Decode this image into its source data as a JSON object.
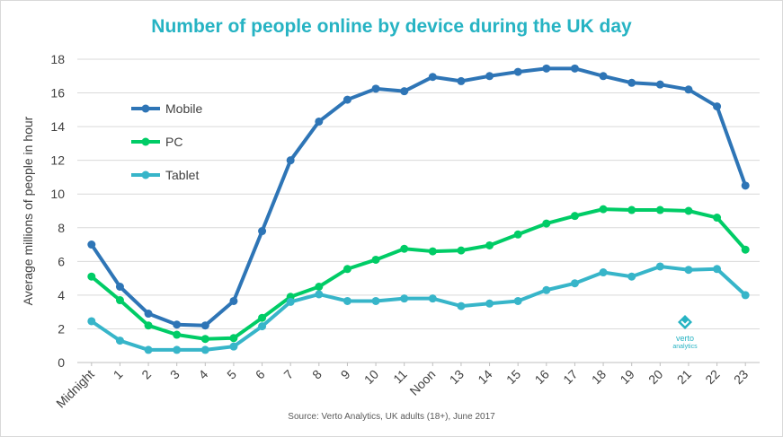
{
  "chart_data": {
    "type": "line",
    "title": "Number of people online by device during the UK day",
    "ylabel": "Average millions of people in hour",
    "xlabel": "",
    "ylim": [
      0,
      18
    ],
    "yticks": [
      0,
      2,
      4,
      6,
      8,
      10,
      12,
      14,
      16,
      18
    ],
    "grid": true,
    "legend_position": "top-left",
    "categories": [
      "Midnight",
      "1",
      "2",
      "3",
      "4",
      "5",
      "6",
      "7",
      "8",
      "9",
      "10",
      "11",
      "Noon",
      "13",
      "14",
      "15",
      "16",
      "17",
      "18",
      "19",
      "20",
      "21",
      "22",
      "23"
    ],
    "series": [
      {
        "name": "Mobile",
        "color": "#2e75b6",
        "values": [
          7.0,
          4.5,
          2.9,
          2.25,
          2.2,
          3.65,
          7.8,
          12.0,
          14.3,
          15.6,
          16.25,
          16.1,
          16.95,
          16.7,
          17.0,
          17.25,
          17.45,
          17.45,
          17.0,
          16.6,
          16.5,
          16.2,
          15.2,
          10.5
        ]
      },
      {
        "name": "PC",
        "color": "#00cc66",
        "values": [
          5.1,
          3.7,
          2.2,
          1.65,
          1.4,
          1.45,
          2.65,
          3.9,
          4.5,
          5.55,
          6.1,
          6.75,
          6.6,
          6.65,
          6.95,
          7.6,
          8.25,
          8.7,
          9.1,
          9.05,
          9.05,
          9.0,
          8.6,
          6.7
        ]
      },
      {
        "name": "Tablet",
        "color": "#37b5c9",
        "values": [
          2.45,
          1.3,
          0.75,
          0.75,
          0.75,
          0.95,
          2.15,
          3.6,
          4.05,
          3.65,
          3.65,
          3.8,
          3.8,
          3.35,
          3.5,
          3.65,
          4.3,
          4.7,
          5.35,
          5.1,
          5.7,
          5.5,
          5.55,
          4.0
        ]
      }
    ],
    "source": "Source: Verto Analytics, UK adults (18+), June 2017"
  },
  "logo": {
    "text_top": "verto",
    "text_bottom": "analytics",
    "icon": "verto-diamond-icon"
  }
}
